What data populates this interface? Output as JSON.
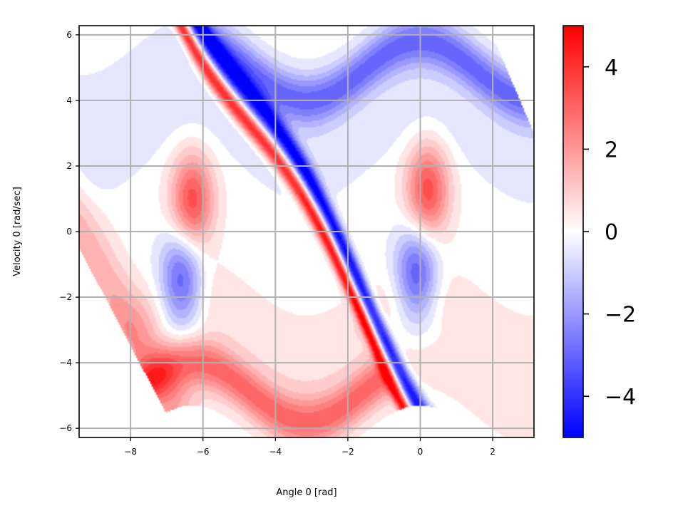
{
  "chart_data": {
    "type": "heatmap",
    "title": "",
    "xlabel": "Angle 0 [rad]",
    "ylabel": "Velocity 0 [rad/sec]",
    "xlim": [
      -9.42,
      3.14
    ],
    "ylim": [
      -6.28,
      6.28
    ],
    "x_ticks": [
      -8,
      -6,
      -4,
      -2,
      0,
      2
    ],
    "x_tick_labels": [
      "−8",
      "−6",
      "−4",
      "−2",
      "0",
      "2"
    ],
    "y_ticks": [
      -6,
      -4,
      -2,
      0,
      2,
      4,
      6
    ],
    "y_tick_labels": [
      "−6",
      "−4",
      "−2",
      "0",
      "2",
      "4",
      "6"
    ],
    "grid": true,
    "colormap": "bwr",
    "colorbar": {
      "range": [
        -5,
        5
      ],
      "ticks": [
        -4,
        -2,
        0,
        2,
        4
      ],
      "tick_labels": [
        "−4",
        "−2",
        "0",
        "2",
        "4"
      ],
      "min_color": "#0000ff",
      "mid_color": "#ffffff",
      "max_color": "#ff0000"
    }
  },
  "colors": {
    "grid": "#b0b0b0",
    "frame": "#000000",
    "background": "#ffffff"
  }
}
